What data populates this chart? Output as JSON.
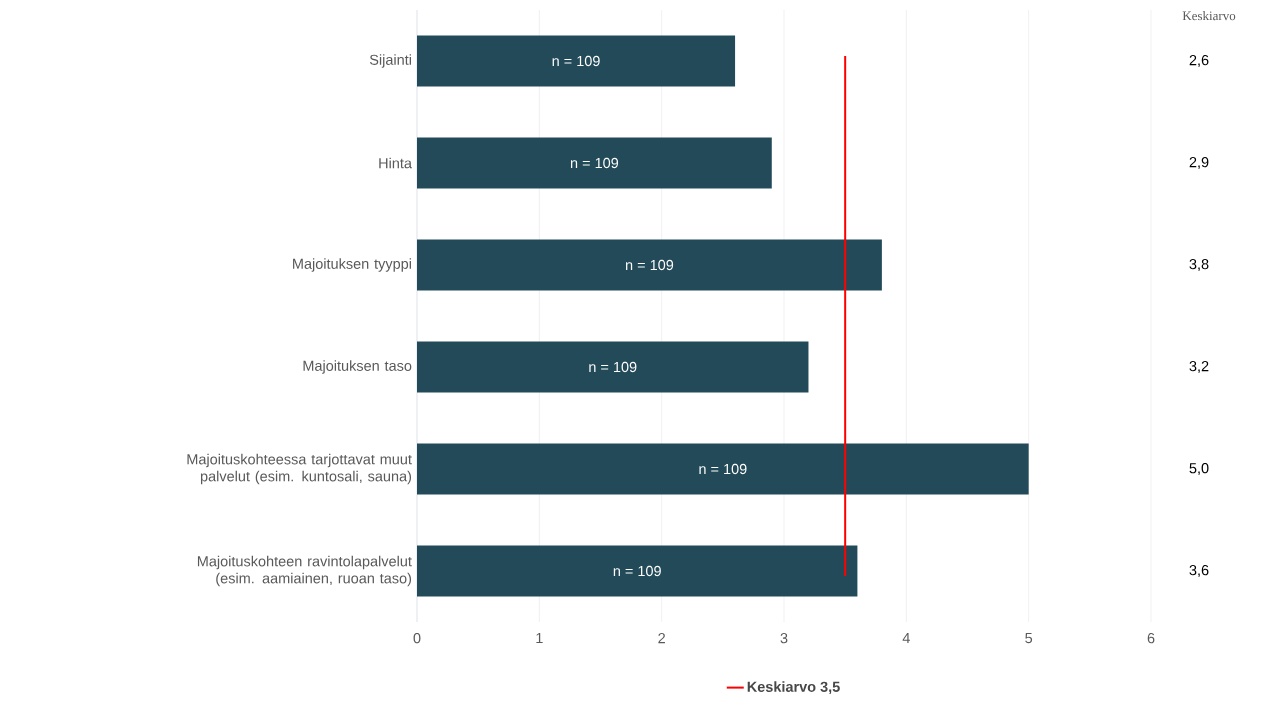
{
  "chart_data": {
    "type": "bar",
    "orientation": "horizontal",
    "categories": [
      "Sijainti",
      "Hinta",
      "Majoituksen tyyppi",
      "Majoituksen taso",
      "Majoituskohteessa tarjottavat muut palvelut (esim. kuntosali, sauna)",
      "Majoituskohteen ravintolapalvelut (esim. aamiainen, ruoan taso)"
    ],
    "values": [
      2.6,
      2.9,
      3.8,
      3.2,
      5.0,
      3.6
    ],
    "value_labels": [
      "2,6",
      "2,9",
      "3,8",
      "3,2",
      "5,0",
      "3,6"
    ],
    "color": "#234a58",
    "xlim": [
      0,
      6
    ],
    "xticks": [
      0,
      1,
      2,
      3,
      4,
      5,
      6
    ],
    "grid": "x",
    "legend": "bottom",
    "ref_lines": [
      {
        "axis": "x",
        "value": 3.5,
        "label": "Keskiarvo 3,5",
        "color": "#ff0000"
      }
    ],
    "annotations": [
      "Keskiarvo",
      "n = 109",
      "n = 109",
      "n = 109",
      "n = 109",
      "n = 109",
      "n = 109"
    ]
  }
}
